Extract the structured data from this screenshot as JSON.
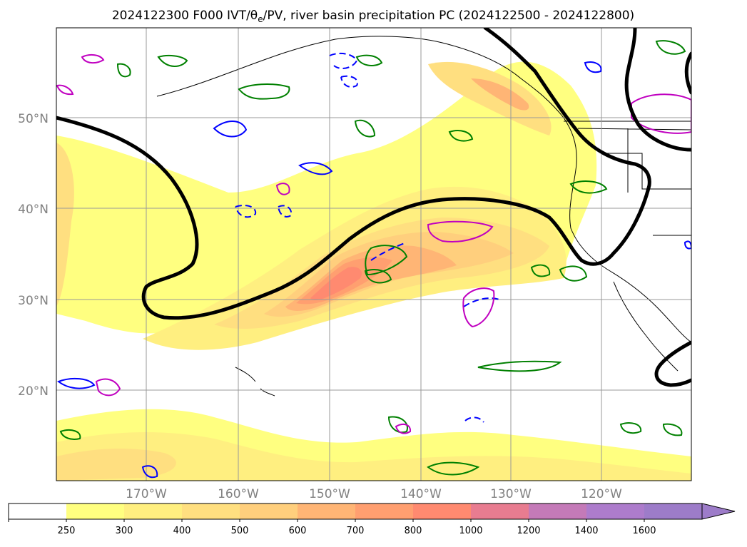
{
  "map": {
    "title": "2024122300 F000 IVT/θe/PV, river basin precipitation PC (2024122500 - 2024122800)",
    "lat_labels": [
      "50°N",
      "40°N",
      "30°N",
      "20°N"
    ],
    "lon_labels": [
      "170°W",
      "160°W",
      "150°W",
      "140°W",
      "130°W",
      "120°W"
    ]
  },
  "colorbar": {
    "labels": [
      "250",
      "300",
      "400",
      "500",
      "600",
      "700",
      "800",
      "1000",
      "1200",
      "1400",
      "1600"
    ],
    "colors": [
      "#ffffff",
      "#ffff80",
      "#ffef80",
      "#ffdf80",
      "#ffcf7d",
      "#ffb575",
      "#ff9f70",
      "#ff8a70",
      "#e87c90",
      "#c47ab8",
      "#ad7ccc",
      "#9d7cc9"
    ]
  }
}
